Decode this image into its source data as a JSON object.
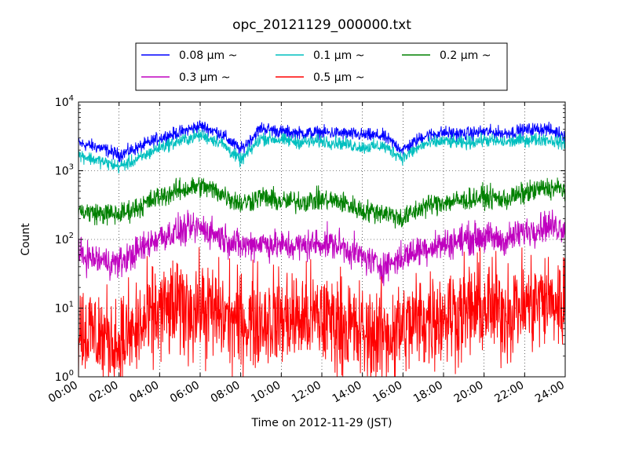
{
  "chart_data": {
    "type": "line",
    "title": "opc_20121129_000000.txt",
    "xlabel": "Time on 2012-11-29 (JST)",
    "ylabel": "Count",
    "yscale": "log",
    "ylim": [
      1,
      10000
    ],
    "xlim": [
      "00:00",
      "24:00"
    ],
    "x_ticks": [
      "00:00",
      "02:00",
      "04:00",
      "06:00",
      "08:00",
      "10:00",
      "12:00",
      "14:00",
      "16:00",
      "18:00",
      "20:00",
      "22:00",
      "24:00"
    ],
    "y_ticks": [
      {
        "base": "10",
        "exp": "0"
      },
      {
        "base": "10",
        "exp": "1"
      },
      {
        "base": "10",
        "exp": "2"
      },
      {
        "base": "10",
        "exp": "3"
      },
      {
        "base": "10",
        "exp": "4"
      }
    ],
    "grid": true,
    "legend_position": "top-center",
    "x": [
      "00:00",
      "01:00",
      "02:00",
      "03:00",
      "04:00",
      "05:00",
      "06:00",
      "07:00",
      "08:00",
      "09:00",
      "10:00",
      "11:00",
      "12:00",
      "13:00",
      "14:00",
      "15:00",
      "16:00",
      "17:00",
      "18:00",
      "19:00",
      "20:00",
      "21:00",
      "22:00",
      "23:00",
      "24:00"
    ],
    "series": [
      {
        "name": "0.08 μm ~",
        "color": "#0000ff",
        "noise": 0.06,
        "values": [
          2500,
          2200,
          1700,
          2200,
          3000,
          3600,
          4500,
          3500,
          2000,
          4200,
          3700,
          3500,
          3600,
          3500,
          3300,
          3200,
          2000,
          3200,
          3600,
          3400,
          3700,
          3500,
          3900,
          4100,
          3300
        ]
      },
      {
        "name": "0.1 μm ~",
        "color": "#00bfbf",
        "noise": 0.06,
        "values": [
          1700,
          1400,
          1150,
          1500,
          2200,
          2700,
          3300,
          2600,
          1400,
          3000,
          2800,
          2600,
          2700,
          2500,
          2200,
          2300,
          1550,
          2400,
          2700,
          2500,
          2800,
          2600,
          2800,
          2900,
          2500
        ]
      },
      {
        "name": "0.2 μm ~",
        "color": "#008000",
        "noise": 0.1,
        "values": [
          260,
          240,
          230,
          300,
          420,
          520,
          600,
          480,
          330,
          420,
          350,
          360,
          380,
          350,
          260,
          250,
          200,
          300,
          350,
          370,
          420,
          380,
          470,
          560,
          540
        ]
      },
      {
        "name": "0.3 μm ~",
        "color": "#bf00bf",
        "noise": 0.14,
        "values": [
          60,
          50,
          45,
          70,
          110,
          130,
          150,
          110,
          80,
          90,
          80,
          80,
          90,
          80,
          55,
          40,
          55,
          75,
          85,
          100,
          110,
          95,
          130,
          160,
          150
        ]
      },
      {
        "name": "0.5 μm ~",
        "color": "#ff0000",
        "noise": 0.45,
        "values": [
          5,
          4,
          3,
          5,
          9,
          10,
          10,
          8,
          6,
          7,
          7,
          7,
          7,
          6,
          4,
          4,
          5,
          7,
          8,
          9,
          10,
          9,
          11,
          13,
          11
        ]
      }
    ]
  }
}
